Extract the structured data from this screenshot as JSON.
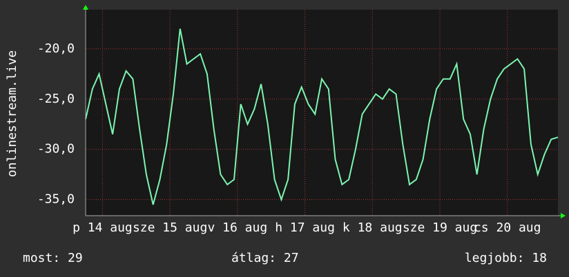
{
  "chart_data": {
    "type": "line",
    "y_label": "onlinestream.live",
    "x": [
      0,
      0.1,
      0.2,
      0.3,
      0.4,
      0.5,
      0.6,
      0.7,
      0.8,
      0.9,
      1,
      1.1,
      1.2,
      1.3,
      1.4,
      1.5,
      1.6,
      1.7,
      1.8,
      1.9,
      2,
      2.1,
      2.2,
      2.3,
      2.4,
      2.5,
      2.6,
      2.7,
      2.8,
      2.9,
      3,
      3.1,
      3.2,
      3.3,
      3.4,
      3.5,
      3.6,
      3.7,
      3.8,
      3.9,
      4,
      4.1,
      4.2,
      4.3,
      4.4,
      4.5,
      4.6,
      4.7,
      4.8,
      4.9,
      5,
      5.1,
      5.2,
      5.3,
      5.4,
      5.5,
      5.6,
      5.7,
      5.8,
      5.9,
      6,
      6.1,
      6.2,
      6.3,
      6.4,
      6.5,
      6.6,
      6.7,
      6.8,
      6.9,
      7
    ],
    "series": [
      {
        "name": "onlinestream.live",
        "color": "#7cf5b0",
        "values": [
          -27.0,
          -24.0,
          -22.5,
          -25.5,
          -28.5,
          -24.0,
          -22.2,
          -23.0,
          -28.0,
          -32.5,
          -35.5,
          -33.0,
          -29.5,
          -24.5,
          -18.0,
          -21.5,
          -21.0,
          -20.5,
          -22.5,
          -28.0,
          -32.5,
          -33.5,
          -33.0,
          -25.5,
          -27.5,
          -26.0,
          -23.5,
          -27.5,
          -33.0,
          -35.0,
          -33.0,
          -25.5,
          -23.8,
          -25.5,
          -26.5,
          -23.0,
          -24.0,
          -31.0,
          -33.5,
          -33.0,
          -30.0,
          -26.5,
          -25.5,
          -24.5,
          -25.0,
          -24.0,
          -24.5,
          -29.5,
          -33.5,
          -33.0,
          -31.0,
          -27.0,
          -24.0,
          -23.0,
          -23.0,
          -21.5,
          -27.0,
          -28.5,
          -32.5,
          -28.0,
          -25.0,
          -23.0,
          -22.0,
          -21.5,
          -21.0,
          -22.0,
          -29.5,
          -32.5,
          -30.5,
          -29.0,
          -28.8
        ]
      }
    ],
    "xlim": [
      0,
      7
    ],
    "xticks": [
      {
        "value": 0.25,
        "label": "p 14 aug"
      },
      {
        "value": 1.25,
        "label": "sze 15 aug"
      },
      {
        "value": 2.25,
        "label": "v 16 aug"
      },
      {
        "value": 3.25,
        "label": "h 17 aug"
      },
      {
        "value": 4.25,
        "label": "k 18 aug"
      },
      {
        "value": 5.25,
        "label": "sze 19 aug"
      },
      {
        "value": 6.25,
        "label": "cs 20 aug"
      }
    ],
    "ylim": [
      -36.6,
      -16.1
    ],
    "yticks": [
      {
        "value": -35,
        "label": "-35,0"
      },
      {
        "value": -30,
        "label": "-30,0"
      },
      {
        "value": -25,
        "label": "-25,0"
      },
      {
        "value": -20,
        "label": "-20,0"
      }
    ],
    "grid": true,
    "footer": [
      "most: 29",
      "átlag: 27",
      "legjobb: 18"
    ]
  }
}
